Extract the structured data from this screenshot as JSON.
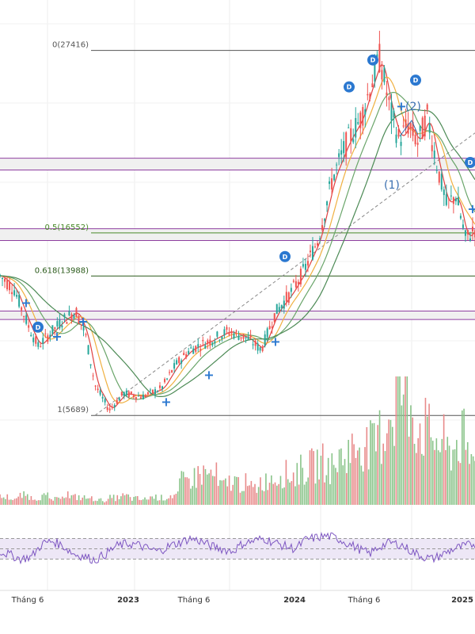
{
  "chart_data": {
    "type": "line",
    "title": "",
    "price_panel": {
      "ylim": [
        4000,
        29000
      ],
      "fib_levels": [
        {
          "label": "0(27416)",
          "value": 27416,
          "color": "#555555"
        },
        {
          "label": "0.5(16552)",
          "value": 16552,
          "color": "#4a8a2a"
        },
        {
          "label": "0.618(13988)",
          "value": 13988,
          "color": "#2a5a1a"
        },
        {
          "label": "1(5689)",
          "value": 5689,
          "color": "#555555"
        }
      ],
      "bands": [
        {
          "low": 16100,
          "high": 16800
        },
        {
          "low": 11400,
          "high": 11900
        },
        {
          "low": 20300,
          "high": 21000
        }
      ],
      "close": [
        {
          "x": 0,
          "y": 14000
        },
        {
          "x": 0.03,
          "y": 13200
        },
        {
          "x": 0.06,
          "y": 11000
        },
        {
          "x": 0.08,
          "y": 9800
        },
        {
          "x": 0.1,
          "y": 10400
        },
        {
          "x": 0.13,
          "y": 11300
        },
        {
          "x": 0.16,
          "y": 11900
        },
        {
          "x": 0.18,
          "y": 10500
        },
        {
          "x": 0.2,
          "y": 7500
        },
        {
          "x": 0.23,
          "y": 6000
        },
        {
          "x": 0.26,
          "y": 7000
        },
        {
          "x": 0.3,
          "y": 6800
        },
        {
          "x": 0.34,
          "y": 7300
        },
        {
          "x": 0.37,
          "y": 8700
        },
        {
          "x": 0.4,
          "y": 9600
        },
        {
          "x": 0.44,
          "y": 10100
        },
        {
          "x": 0.48,
          "y": 10700
        },
        {
          "x": 0.52,
          "y": 10300
        },
        {
          "x": 0.55,
          "y": 9600
        },
        {
          "x": 0.58,
          "y": 11800
        },
        {
          "x": 0.61,
          "y": 12900
        },
        {
          "x": 0.64,
          "y": 14300
        },
        {
          "x": 0.67,
          "y": 16200
        },
        {
          "x": 0.7,
          "y": 19800
        },
        {
          "x": 0.73,
          "y": 21900
        },
        {
          "x": 0.76,
          "y": 23400
        },
        {
          "x": 0.78,
          "y": 25300
        },
        {
          "x": 0.8,
          "y": 27000
        },
        {
          "x": 0.82,
          "y": 24000
        },
        {
          "x": 0.84,
          "y": 22100
        },
        {
          "x": 0.86,
          "y": 23000
        },
        {
          "x": 0.88,
          "y": 21900
        },
        {
          "x": 0.9,
          "y": 23500
        },
        {
          "x": 0.92,
          "y": 20600
        },
        {
          "x": 0.94,
          "y": 18200
        },
        {
          "x": 0.96,
          "y": 18800
        },
        {
          "x": 0.98,
          "y": 16200
        },
        {
          "x": 1.0,
          "y": 16800
        }
      ]
    },
    "volume_panel": {
      "values": [
        10,
        8,
        12,
        9,
        11,
        7,
        14,
        10,
        9,
        8,
        6,
        9,
        11,
        8,
        7,
        10,
        9,
        12,
        30,
        35,
        40,
        38,
        25,
        30,
        28,
        22,
        30,
        35,
        40,
        38,
        45,
        50,
        55,
        48,
        60,
        70,
        80,
        75,
        90,
        120,
        150,
        130,
        100,
        90,
        80,
        70,
        85,
        60,
        50
      ]
    },
    "rsi_panel": {
      "ylim": [
        0,
        100
      ],
      "levels": [
        70,
        50,
        30
      ],
      "values": [
        45,
        38,
        30,
        35,
        60,
        65,
        55,
        40,
        35,
        28,
        40,
        55,
        60,
        58,
        50,
        45,
        55,
        62,
        70,
        65,
        55,
        50,
        45,
        60,
        65,
        70,
        62,
        55,
        50,
        68,
        72,
        75,
        70,
        60,
        50,
        40,
        55,
        62,
        58,
        45,
        35,
        30,
        40,
        50,
        55,
        60
      ]
    },
    "x_axis": {
      "ticks": [
        "Tháng 6",
        "2023",
        "Tháng 6",
        "2024",
        "Tháng 6",
        "2025"
      ]
    },
    "wave_labels": [
      "(1)",
      "(2)"
    ],
    "markers": {
      "d_label": "D",
      "plus_label": "+"
    },
    "colors": {
      "up": "#26a69a",
      "down": "#ef5350",
      "ma_fast": "#e04040",
      "ma_mid": "#f0b040",
      "ma_slow": "#6aa56a",
      "rsi": "#7e57c2",
      "rsi_band": "#ede7f6",
      "band_fill": "#f0f0f0",
      "band_border": "#8e3fa0",
      "marker_blue": "#2b78d0"
    }
  }
}
